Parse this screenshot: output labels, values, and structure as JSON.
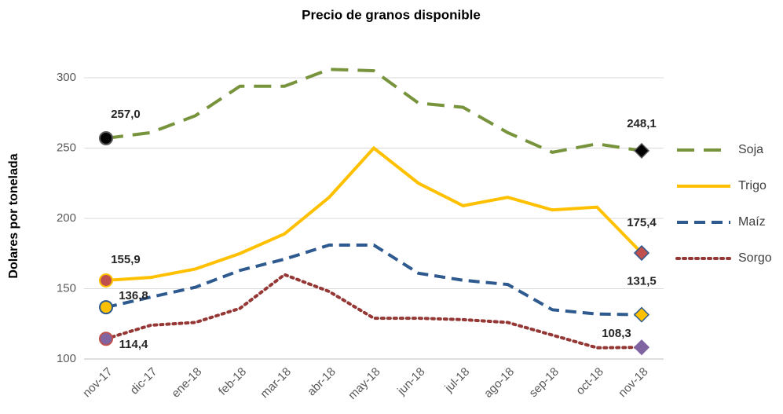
{
  "chart_data": {
    "type": "line",
    "title": "Precio de granos disponible",
    "y_label": "Dolares por tonelada",
    "categories": [
      "nov-17",
      "dic-17",
      "ene-18",
      "feb-18",
      "mar-18",
      "abr-18",
      "may-18",
      "jun-18",
      "jul-18",
      "ago-18",
      "sep-18",
      "oct-18",
      "nov-18"
    ],
    "series": [
      {
        "name": "Soja",
        "color": "#77933c",
        "style": "long-dash",
        "values": [
          257.0,
          261,
          273,
          294,
          294,
          306,
          305,
          282,
          279,
          261,
          247,
          253,
          248.1
        ],
        "value_labels": [
          "257,0",
          null,
          null,
          null,
          null,
          null,
          null,
          null,
          null,
          null,
          null,
          null,
          "248,1"
        ]
      },
      {
        "name": "Trigo",
        "color": "#ffc000",
        "style": "solid",
        "values": [
          155.9,
          158,
          164,
          175,
          189,
          215,
          250,
          225,
          209,
          215,
          206,
          208,
          175.4
        ],
        "value_labels": [
          "155,9",
          null,
          null,
          null,
          null,
          null,
          null,
          null,
          null,
          null,
          null,
          null,
          "175,4"
        ]
      },
      {
        "name": "Maíz",
        "color": "#2e5a8f",
        "style": "dash",
        "values": [
          136.8,
          144,
          151,
          163,
          171,
          181,
          181,
          161,
          156,
          153,
          135,
          132,
          131.5
        ],
        "value_labels": [
          "136,8",
          null,
          null,
          null,
          null,
          null,
          null,
          null,
          null,
          null,
          null,
          null,
          "131,5"
        ]
      },
      {
        "name": "Sorgo",
        "color": "#953735",
        "style": "dot",
        "values": [
          114.4,
          124,
          126,
          136,
          160,
          148,
          129,
          129,
          128,
          126,
          117,
          108,
          108.3
        ],
        "value_labels": [
          "114,4",
          null,
          null,
          null,
          null,
          null,
          null,
          null,
          null,
          null,
          null,
          null,
          "108,3"
        ]
      }
    ],
    "ylim": [
      100,
      325
    ],
    "yticks": [
      100,
      150,
      200,
      250,
      300
    ],
    "grid": true,
    "legend": "right"
  }
}
